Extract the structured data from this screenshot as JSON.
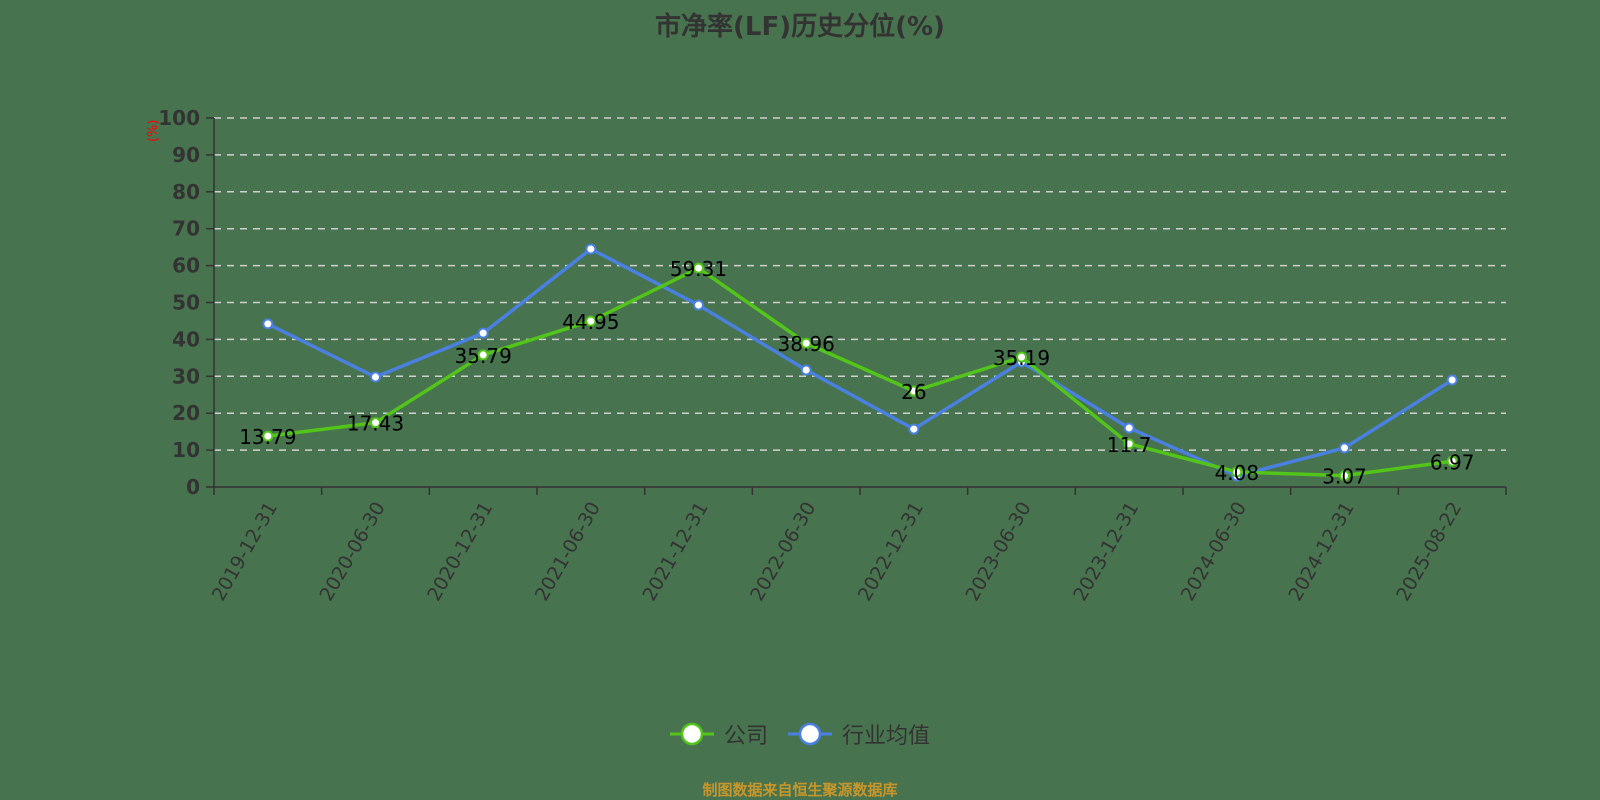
{
  "chart_data": {
    "type": "line",
    "title": "市净率(LF)历史分位(%)",
    "xlabel": "",
    "ylabel": "(%)",
    "ylim": [
      0,
      100
    ],
    "yticks": [
      0,
      10,
      20,
      30,
      40,
      50,
      60,
      70,
      80,
      90,
      100
    ],
    "grid": true,
    "legend_position": "bottom",
    "categories": [
      "2019-12-31",
      "2020-06-30",
      "2020-12-31",
      "2021-06-30",
      "2021-12-31",
      "2022-06-30",
      "2022-12-31",
      "2023-06-30",
      "2023-12-31",
      "2024-06-30",
      "2024-12-31",
      "2025-08-22"
    ],
    "series": [
      {
        "name": "公司",
        "color": "#52c41a",
        "labeled": true,
        "values": [
          13.79,
          17.43,
          35.79,
          44.95,
          59.31,
          38.96,
          26,
          35.19,
          11.7,
          4.08,
          3.07,
          6.97
        ]
      },
      {
        "name": "行业均值",
        "color": "#4a80e0",
        "labeled": false,
        "values": [
          44.2,
          29.8,
          41.7,
          64.5,
          49.3,
          31.7,
          15.7,
          33.9,
          16.0,
          3.0,
          10.6,
          29.0
        ]
      }
    ]
  },
  "title": "市净率(LF)历史分位(%)",
  "y_axis_label": "(%)",
  "legend": [
    {
      "name": "公司",
      "color": "#52c41a"
    },
    {
      "name": "行业均值",
      "color": "#4a80e0"
    }
  ],
  "footer": "制图数据来自恒生聚源数据库"
}
